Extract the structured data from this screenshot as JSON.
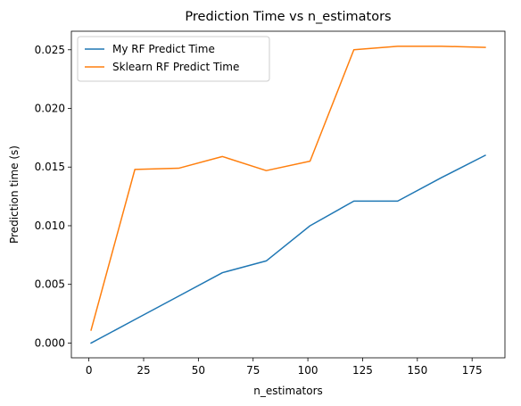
{
  "chart_data": {
    "type": "line",
    "title": "Prediction Time vs n_estimators",
    "xlabel": "n_estimators",
    "ylabel": "Prediction time (s)",
    "xlim": [
      -8,
      190
    ],
    "ylim": [
      -0.00126,
      0.02658
    ],
    "xticks": [
      {
        "value": 0,
        "label": "0"
      },
      {
        "value": 25,
        "label": "25"
      },
      {
        "value": 50,
        "label": "50"
      },
      {
        "value": 75,
        "label": "75"
      },
      {
        "value": 100,
        "label": "100"
      },
      {
        "value": 125,
        "label": "125"
      },
      {
        "value": 150,
        "label": "150"
      },
      {
        "value": 175,
        "label": "175"
      }
    ],
    "yticks": [
      {
        "value": 0.0,
        "label": "0.000"
      },
      {
        "value": 0.005,
        "label": "0.005"
      },
      {
        "value": 0.01,
        "label": "0.010"
      },
      {
        "value": 0.015,
        "label": "0.015"
      },
      {
        "value": 0.02,
        "label": "0.020"
      },
      {
        "value": 0.025,
        "label": "0.025"
      }
    ],
    "grid": false,
    "legend_position": "upper-left",
    "series": [
      {
        "name": "My RF Predict Time",
        "color": "#1f77b4",
        "x": [
          1,
          21,
          41,
          61,
          81,
          101,
          121,
          141,
          161,
          181
        ],
        "y": [
          0.0,
          0.002,
          0.004,
          0.006,
          0.007,
          0.01,
          0.0121,
          0.0121,
          0.0141,
          0.016
        ]
      },
      {
        "name": "Sklearn RF Predict Time",
        "color": "#ff7f0e",
        "x": [
          1,
          21,
          41,
          61,
          81,
          101,
          121,
          141,
          161,
          181
        ],
        "y": [
          0.0011,
          0.0148,
          0.0149,
          0.0159,
          0.0147,
          0.0155,
          0.025,
          0.0253,
          0.0253,
          0.0252
        ]
      }
    ]
  }
}
